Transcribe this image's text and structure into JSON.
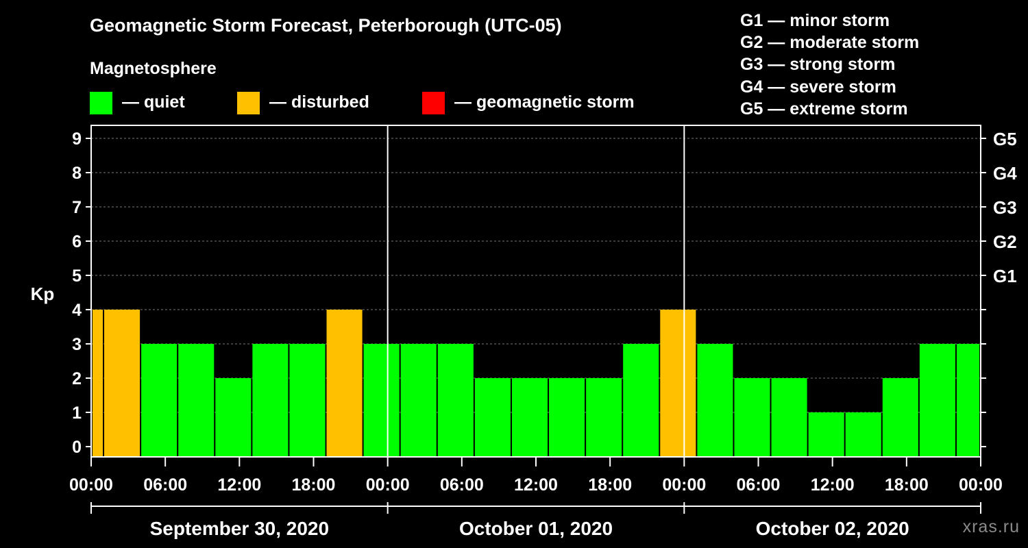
{
  "header": {
    "title": "Geomagnetic Storm Forecast, Peterborough (UTC-05)",
    "subtitle": "Magnetosphere"
  },
  "legend": [
    {
      "label": "— quiet",
      "color": "#00ff00"
    },
    {
      "label": "— disturbed",
      "color": "#ffc000"
    },
    {
      "label": "— geomagnetic storm",
      "color": "#ff0000"
    }
  ],
  "storm_levels": [
    "G1 — minor storm",
    "G2 — moderate storm",
    "G3 — strong storm",
    "G4 — severe storm",
    "G5 — extreme storm"
  ],
  "watermark": "xras.ru",
  "chart_data": {
    "type": "bar",
    "title": "Geomagnetic Storm Forecast, Peterborough (UTC-05)",
    "ylabel": "Kp",
    "ylim": [
      0,
      9
    ],
    "yticks": [
      "0",
      "1",
      "2",
      "3",
      "4",
      "5",
      "6",
      "7",
      "8",
      "9"
    ],
    "right_ticks": [
      {
        "kp": 5,
        "label": "G1"
      },
      {
        "kp": 6,
        "label": "G2"
      },
      {
        "kp": 7,
        "label": "G3"
      },
      {
        "kp": 8,
        "label": "G4"
      },
      {
        "kp": 9,
        "label": "G5"
      }
    ],
    "x_range_hours": [
      0,
      72
    ],
    "xtick_hours": [
      0,
      6,
      12,
      18,
      24,
      30,
      36,
      42,
      48,
      54,
      60,
      66,
      72
    ],
    "xtick_labels": [
      "00:00",
      "06:00",
      "12:00",
      "18:00",
      "00:00",
      "06:00",
      "12:00",
      "18:00",
      "00:00",
      "06:00",
      "12:00",
      "18:00",
      "00:00"
    ],
    "day_boundaries_hours": [
      24,
      48
    ],
    "days": [
      {
        "label": "September 30, 2020",
        "start_hour": 0,
        "end_hour": 24
      },
      {
        "label": "October 01, 2020",
        "start_hour": 24,
        "end_hour": 48
      },
      {
        "label": "October 02, 2020",
        "start_hour": 48,
        "end_hour": 72
      }
    ],
    "grid": true,
    "colors": {
      "quiet": "#00ff00",
      "disturbed": "#ffc000",
      "storm": "#ff0000"
    },
    "bars": [
      {
        "start": 0,
        "end": 1,
        "kp": 4,
        "status": "disturbed"
      },
      {
        "start": 1,
        "end": 4,
        "kp": 4,
        "status": "disturbed"
      },
      {
        "start": 4,
        "end": 7,
        "kp": 3,
        "status": "quiet"
      },
      {
        "start": 7,
        "end": 10,
        "kp": 3,
        "status": "quiet"
      },
      {
        "start": 10,
        "end": 13,
        "kp": 2,
        "status": "quiet"
      },
      {
        "start": 13,
        "end": 16,
        "kp": 3,
        "status": "quiet"
      },
      {
        "start": 16,
        "end": 19,
        "kp": 3,
        "status": "quiet"
      },
      {
        "start": 19,
        "end": 22,
        "kp": 4,
        "status": "disturbed"
      },
      {
        "start": 22,
        "end": 25,
        "kp": 3,
        "status": "quiet"
      },
      {
        "start": 25,
        "end": 28,
        "kp": 3,
        "status": "quiet"
      },
      {
        "start": 28,
        "end": 31,
        "kp": 3,
        "status": "quiet"
      },
      {
        "start": 31,
        "end": 34,
        "kp": 2,
        "status": "quiet"
      },
      {
        "start": 34,
        "end": 37,
        "kp": 2,
        "status": "quiet"
      },
      {
        "start": 37,
        "end": 40,
        "kp": 2,
        "status": "quiet"
      },
      {
        "start": 40,
        "end": 43,
        "kp": 2,
        "status": "quiet"
      },
      {
        "start": 43,
        "end": 46,
        "kp": 3,
        "status": "quiet"
      },
      {
        "start": 46,
        "end": 49,
        "kp": 4,
        "status": "disturbed"
      },
      {
        "start": 49,
        "end": 52,
        "kp": 3,
        "status": "quiet"
      },
      {
        "start": 52,
        "end": 55,
        "kp": 2,
        "status": "quiet"
      },
      {
        "start": 55,
        "end": 58,
        "kp": 2,
        "status": "quiet"
      },
      {
        "start": 58,
        "end": 61,
        "kp": 1,
        "status": "quiet"
      },
      {
        "start": 61,
        "end": 64,
        "kp": 1,
        "status": "quiet"
      },
      {
        "start": 64,
        "end": 67,
        "kp": 2,
        "status": "quiet"
      },
      {
        "start": 67,
        "end": 70,
        "kp": 3,
        "status": "quiet"
      },
      {
        "start": 70,
        "end": 72,
        "kp": 3,
        "status": "quiet"
      }
    ]
  }
}
